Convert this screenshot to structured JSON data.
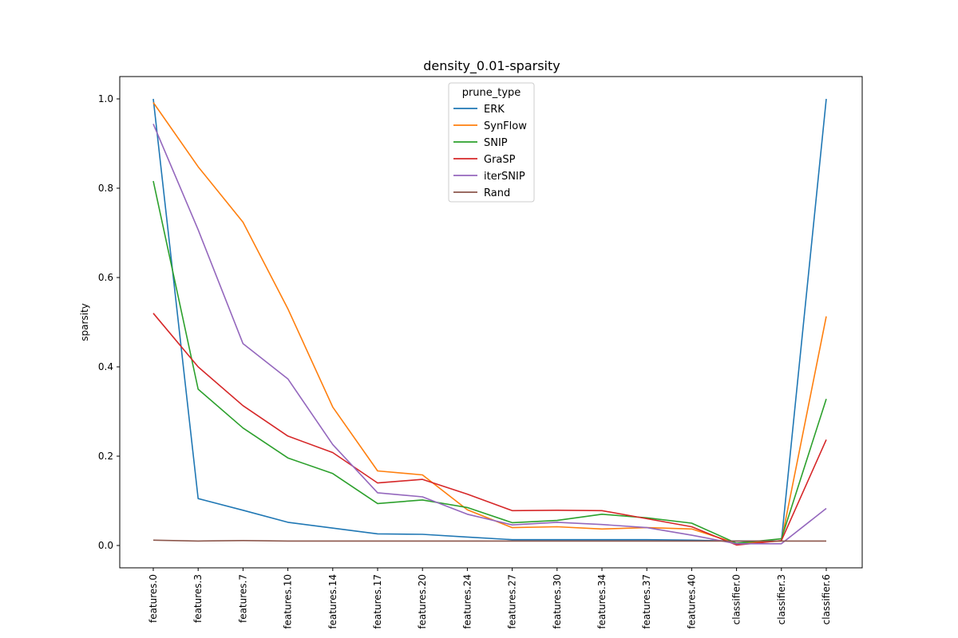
{
  "chart_data": {
    "type": "line",
    "title": "density_0.01-sparsity",
    "xlabel": "",
    "ylabel": "sparsity",
    "categories": [
      "features.0",
      "features.3",
      "features.7",
      "features.10",
      "features.14",
      "features.17",
      "features.20",
      "features.24",
      "features.27",
      "features.30",
      "features.34",
      "features.37",
      "features.40",
      "classifier.0",
      "classifier.3",
      "classifier.6"
    ],
    "ylim": [
      -0.05,
      1.05
    ],
    "yticks": [
      "0.0",
      "0.2",
      "0.4",
      "0.6",
      "0.8",
      "1.0"
    ],
    "grid": false,
    "legend": {
      "title": "prune_type",
      "placement": "upper center"
    },
    "series": [
      {
        "name": "ERK",
        "color": "#1f77b4",
        "values": [
          1.0,
          0.105,
          0.079,
          0.052,
          0.039,
          0.026,
          0.025,
          0.019,
          0.013,
          0.013,
          0.013,
          0.013,
          0.012,
          0.01,
          0.01,
          1.0
        ]
      },
      {
        "name": "SynFlow",
        "color": "#ff7f0e",
        "values": [
          0.992,
          0.848,
          0.724,
          0.53,
          0.31,
          0.167,
          0.158,
          0.08,
          0.04,
          0.042,
          0.037,
          0.04,
          0.037,
          0.005,
          0.01,
          0.513
        ]
      },
      {
        "name": "SNIP",
        "color": "#2ca02c",
        "values": [
          0.816,
          0.35,
          0.263,
          0.196,
          0.161,
          0.094,
          0.102,
          0.085,
          0.051,
          0.056,
          0.07,
          0.062,
          0.05,
          0.005,
          0.015,
          0.328
        ]
      },
      {
        "name": "GraSP",
        "color": "#d62728",
        "values": [
          0.52,
          0.4,
          0.313,
          0.245,
          0.208,
          0.14,
          0.148,
          0.115,
          0.078,
          0.079,
          0.078,
          0.06,
          0.042,
          0.001,
          0.011,
          0.237
        ]
      },
      {
        "name": "iterSNIP",
        "color": "#9467bd",
        "values": [
          0.944,
          0.707,
          0.452,
          0.373,
          0.226,
          0.118,
          0.109,
          0.07,
          0.046,
          0.052,
          0.047,
          0.04,
          0.023,
          0.004,
          0.004,
          0.083
        ]
      },
      {
        "name": "Rand",
        "color": "#8c564b",
        "values": [
          0.012,
          0.01,
          0.011,
          0.01,
          0.01,
          0.01,
          0.01,
          0.01,
          0.01,
          0.01,
          0.01,
          0.01,
          0.01,
          0.01,
          0.01,
          0.01
        ]
      }
    ]
  }
}
